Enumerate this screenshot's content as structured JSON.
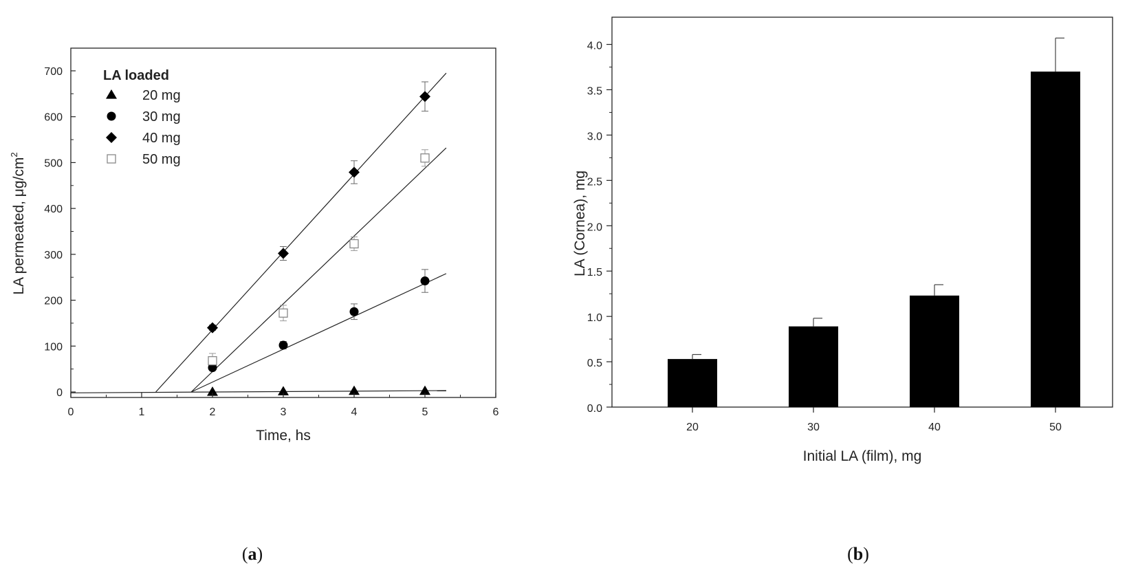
{
  "chart_data": [
    {
      "type": "scatter",
      "xlabel": "Time, hs",
      "ylabel_prefix": "LA permeated, ",
      "ylabel_mu": "μ",
      "ylabel_unit": "g/cm",
      "ylabel_sup": "2",
      "xlim": [
        0,
        6
      ],
      "ylim": [
        -20,
        750
      ],
      "xticks": [
        "0",
        "1",
        "2",
        "3",
        "4",
        "5",
        "6"
      ],
      "yticks": [
        "0",
        "100",
        "200",
        "300",
        "400",
        "500",
        "600",
        "700"
      ],
      "legend_title": "LA loaded",
      "legend_position": "top-left",
      "series": [
        {
          "name": "20 mg",
          "marker": "triangle",
          "x": [
            2,
            3,
            4,
            5
          ],
          "y": [
            0,
            1,
            2,
            2
          ],
          "err": [
            0,
            0,
            0,
            0
          ],
          "fit": [
            [
              0,
              -2
            ],
            [
              5.3,
              3
            ]
          ],
          "color": "#000000"
        },
        {
          "name": "30 mg",
          "marker": "circle",
          "x": [
            2,
            3,
            4,
            5
          ],
          "y": [
            53,
            102,
            175,
            242
          ],
          "err": [
            5,
            8,
            17,
            25
          ],
          "fit": [
            [
              1.7,
              0
            ],
            [
              5.3,
              258
            ]
          ],
          "color": "#000000"
        },
        {
          "name": "40 mg",
          "marker": "diamond",
          "x": [
            2,
            3,
            4,
            5
          ],
          "y": [
            140,
            302,
            479,
            644
          ],
          "err": [
            6,
            15,
            25,
            32
          ],
          "fit": [
            [
              1.2,
              0
            ],
            [
              5.3,
              695
            ]
          ],
          "color": "#000000"
        },
        {
          "name": "50 mg",
          "marker": "open-square",
          "x": [
            2,
            3,
            4,
            5
          ],
          "y": [
            68,
            172,
            323,
            510
          ],
          "err": [
            16,
            17,
            15,
            18
          ],
          "fit": [
            [
              1.7,
              0
            ],
            [
              5.3,
              532
            ]
          ],
          "color": "#888888"
        }
      ],
      "panel_label_open": "(",
      "panel_label_letter": "a",
      "panel_label_close": ")"
    },
    {
      "type": "bar",
      "categories": [
        "20",
        "30",
        "40",
        "50"
      ],
      "values": [
        0.53,
        0.89,
        1.23,
        3.7
      ],
      "errors": [
        0.05,
        0.09,
        0.12,
        0.37
      ],
      "xlabel": "Initial LA (film), mg",
      "ylabel": "LA (Cornea), mg",
      "ylim": [
        0,
        4.3
      ],
      "yticks": [
        "0.0",
        "0.5",
        "1.0",
        "1.5",
        "2.0",
        "2.5",
        "3.0",
        "3.5",
        "4.0"
      ],
      "bar_color": "#000000",
      "panel_label_open": "(",
      "panel_label_letter": "b",
      "panel_label_close": ")"
    }
  ]
}
